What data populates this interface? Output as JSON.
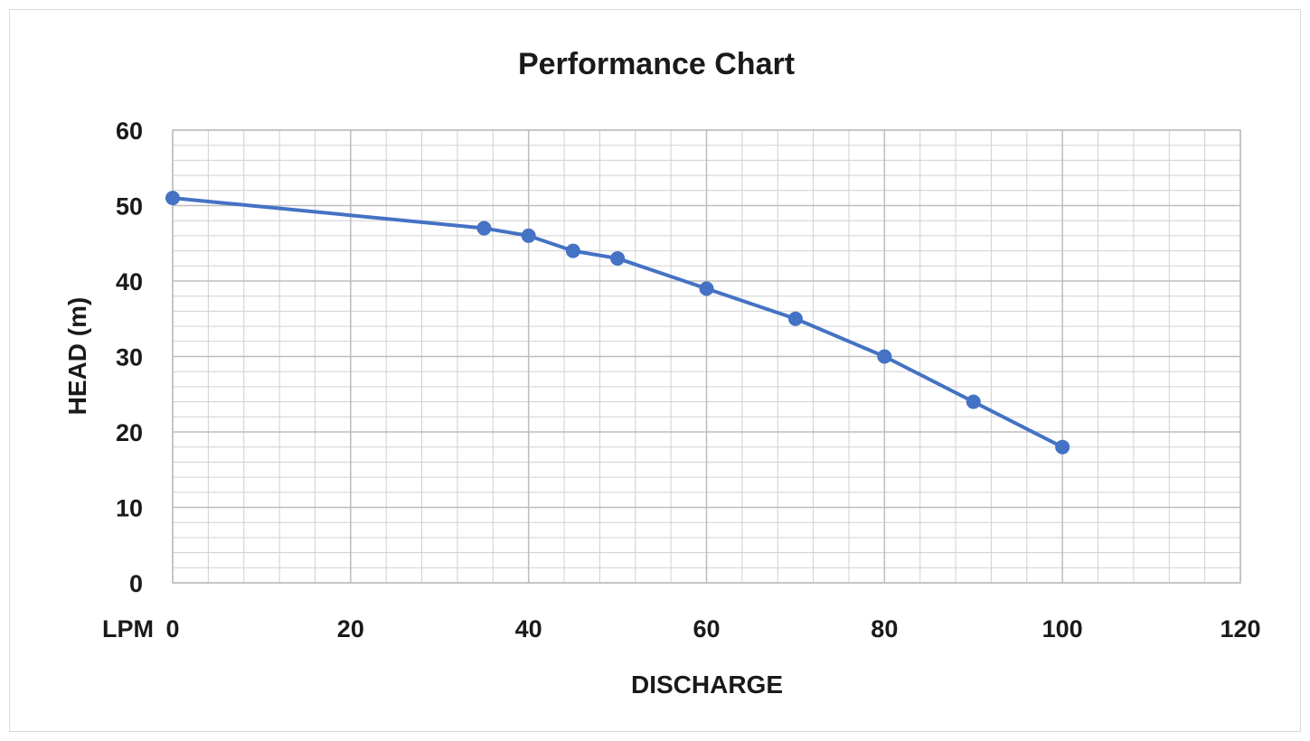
{
  "chart_data": {
    "type": "line",
    "title": "Performance Chart",
    "xlabel": "DISCHARGE",
    "ylabel": "HEAD (m)",
    "x_unit_label": "LPM",
    "xlim": [
      0,
      120
    ],
    "ylim": [
      0,
      60
    ],
    "x_ticks": [
      0,
      20,
      40,
      60,
      80,
      100,
      120
    ],
    "y_ticks": [
      0,
      10,
      20,
      30,
      40,
      50,
      60
    ],
    "x_minor_step": 4,
    "y_minor_step": 2,
    "grid": true,
    "legend": "none",
    "series_color": "#4472C4",
    "grid_color": "#d0d0d0",
    "series": [
      {
        "x": [
          0,
          35,
          40,
          45,
          50,
          60,
          70,
          80,
          90,
          100
        ],
        "y": [
          51,
          47,
          46,
          44,
          43,
          39,
          35,
          30,
          24,
          18
        ]
      }
    ]
  }
}
